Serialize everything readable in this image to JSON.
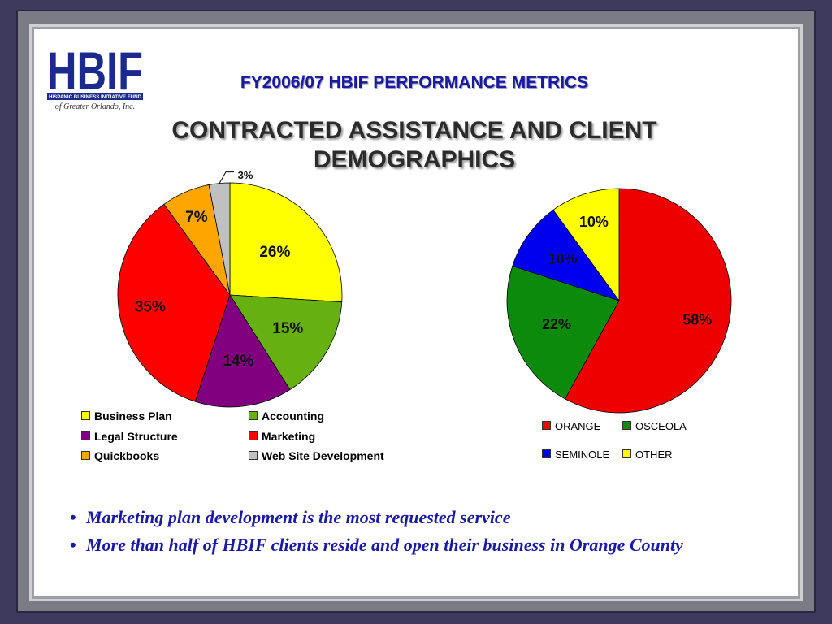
{
  "header": {
    "logo_text": "HBIF",
    "logo_tagline": "HISPANIC BUSINESS INITIATIVE FUND",
    "logo_sub": "of Greater Orlando, Inc.",
    "title": "FY2006/07 HBIF PERFORMANCE METRICS",
    "subtitle_line1": "CONTRACTED ASSISTANCE AND CLIENT",
    "subtitle_line2": "DEMOGRAPHICS"
  },
  "chart_data": [
    {
      "type": "pie",
      "slices": [
        {
          "name": "Business Plan",
          "value": 26,
          "label": "26%",
          "color": "#ffff00"
        },
        {
          "name": "Accounting",
          "value": 15,
          "label": "15%",
          "color": "#66b010"
        },
        {
          "name": "Legal Structure",
          "value": 14,
          "label": "14%",
          "color": "#800080"
        },
        {
          "name": "Marketing",
          "value": 35,
          "label": "35%",
          "color": "#ff0000"
        },
        {
          "name": "Quickbooks",
          "value": 7,
          "label": "7%",
          "color": "#ffa500"
        },
        {
          "name": "Web Site Development",
          "value": 3,
          "label": "3%",
          "color": "#c0c0c0"
        }
      ],
      "legend_placement": "bottom"
    },
    {
      "type": "pie",
      "slices": [
        {
          "name": "ORANGE",
          "value": 58,
          "label": "58%",
          "color": "#ee0000"
        },
        {
          "name": "OSCEOLA",
          "value": 22,
          "label": "22%",
          "color": "#0b8a0b"
        },
        {
          "name": "SEMINOLE",
          "value": 10,
          "label": "10%",
          "color": "#0000ee"
        },
        {
          "name": "OTHER",
          "value": 10,
          "label": "10%",
          "color": "#ffff00"
        }
      ],
      "legend_placement": "bottom"
    }
  ],
  "bullets": [
    "Marketing plan development is the most requested service",
    "More than half of HBIF clients reside and open their business in Orange County"
  ]
}
